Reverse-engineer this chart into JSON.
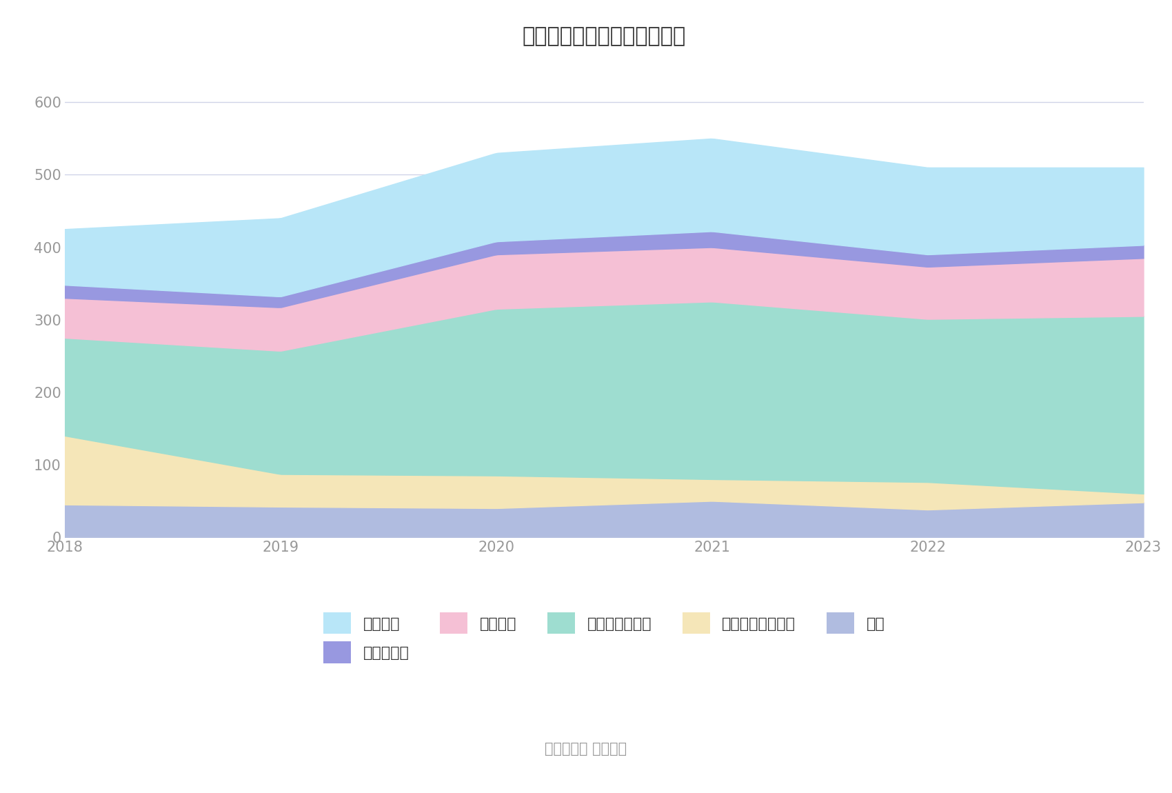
{
  "years": [
    2018,
    2019,
    2020,
    2021,
    2022,
    2023
  ],
  "series": {
    "其它": [
      45,
      42,
      40,
      50,
      38,
      48
    ],
    "买入返售金融资产": [
      95,
      45,
      45,
      30,
      38,
      12
    ],
    "交易性金融资产": [
      135,
      170,
      230,
      245,
      225,
      245
    ],
    "融出资金": [
      55,
      60,
      75,
      75,
      72,
      80
    ],
    "结算备付金": [
      18,
      15,
      18,
      22,
      17,
      18
    ],
    "货币资金": [
      77,
      108,
      122,
      128,
      120,
      107
    ]
  },
  "colors": {
    "其它": "#b0bce0",
    "买入返售金融资产": "#f5e6b8",
    "交易性金融资产": "#9eddd0",
    "融出资金": "#f5c0d5",
    "结算备付金": "#9898e0",
    "货币资金": "#b8e6f8"
  },
  "title": "历年主要资产堆积图（亿元）",
  "title_fontsize": 22,
  "ylim": [
    0,
    650
  ],
  "yticks": [
    0,
    100,
    200,
    300,
    400,
    500,
    600
  ],
  "background_color": "#ffffff",
  "grid_color": "#d0d4e8",
  "source_text": "数据来源： 恒生聚源",
  "legend_order": [
    "货币资金",
    "结算备付金",
    "融出资金",
    "交易性金融资产",
    "买入返售金融资产",
    "其它"
  ],
  "stack_order": [
    "其它",
    "买入返售金融资产",
    "交易性金融资产",
    "融出资金",
    "结算备付金",
    "货币资金"
  ]
}
